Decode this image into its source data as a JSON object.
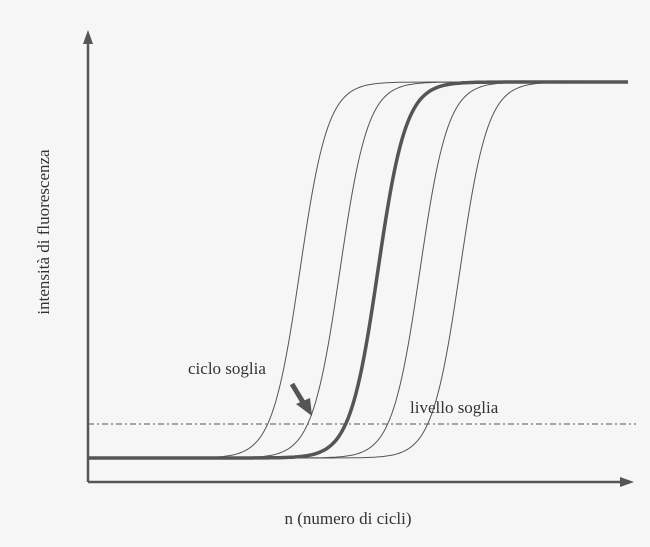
{
  "y_axis_label": "intensità di fluorescenza",
  "x_axis_label": "n (numero di cicli)",
  "threshold_cycle_label": "ciclo soglia",
  "threshold_level_label": "livello soglia"
}
